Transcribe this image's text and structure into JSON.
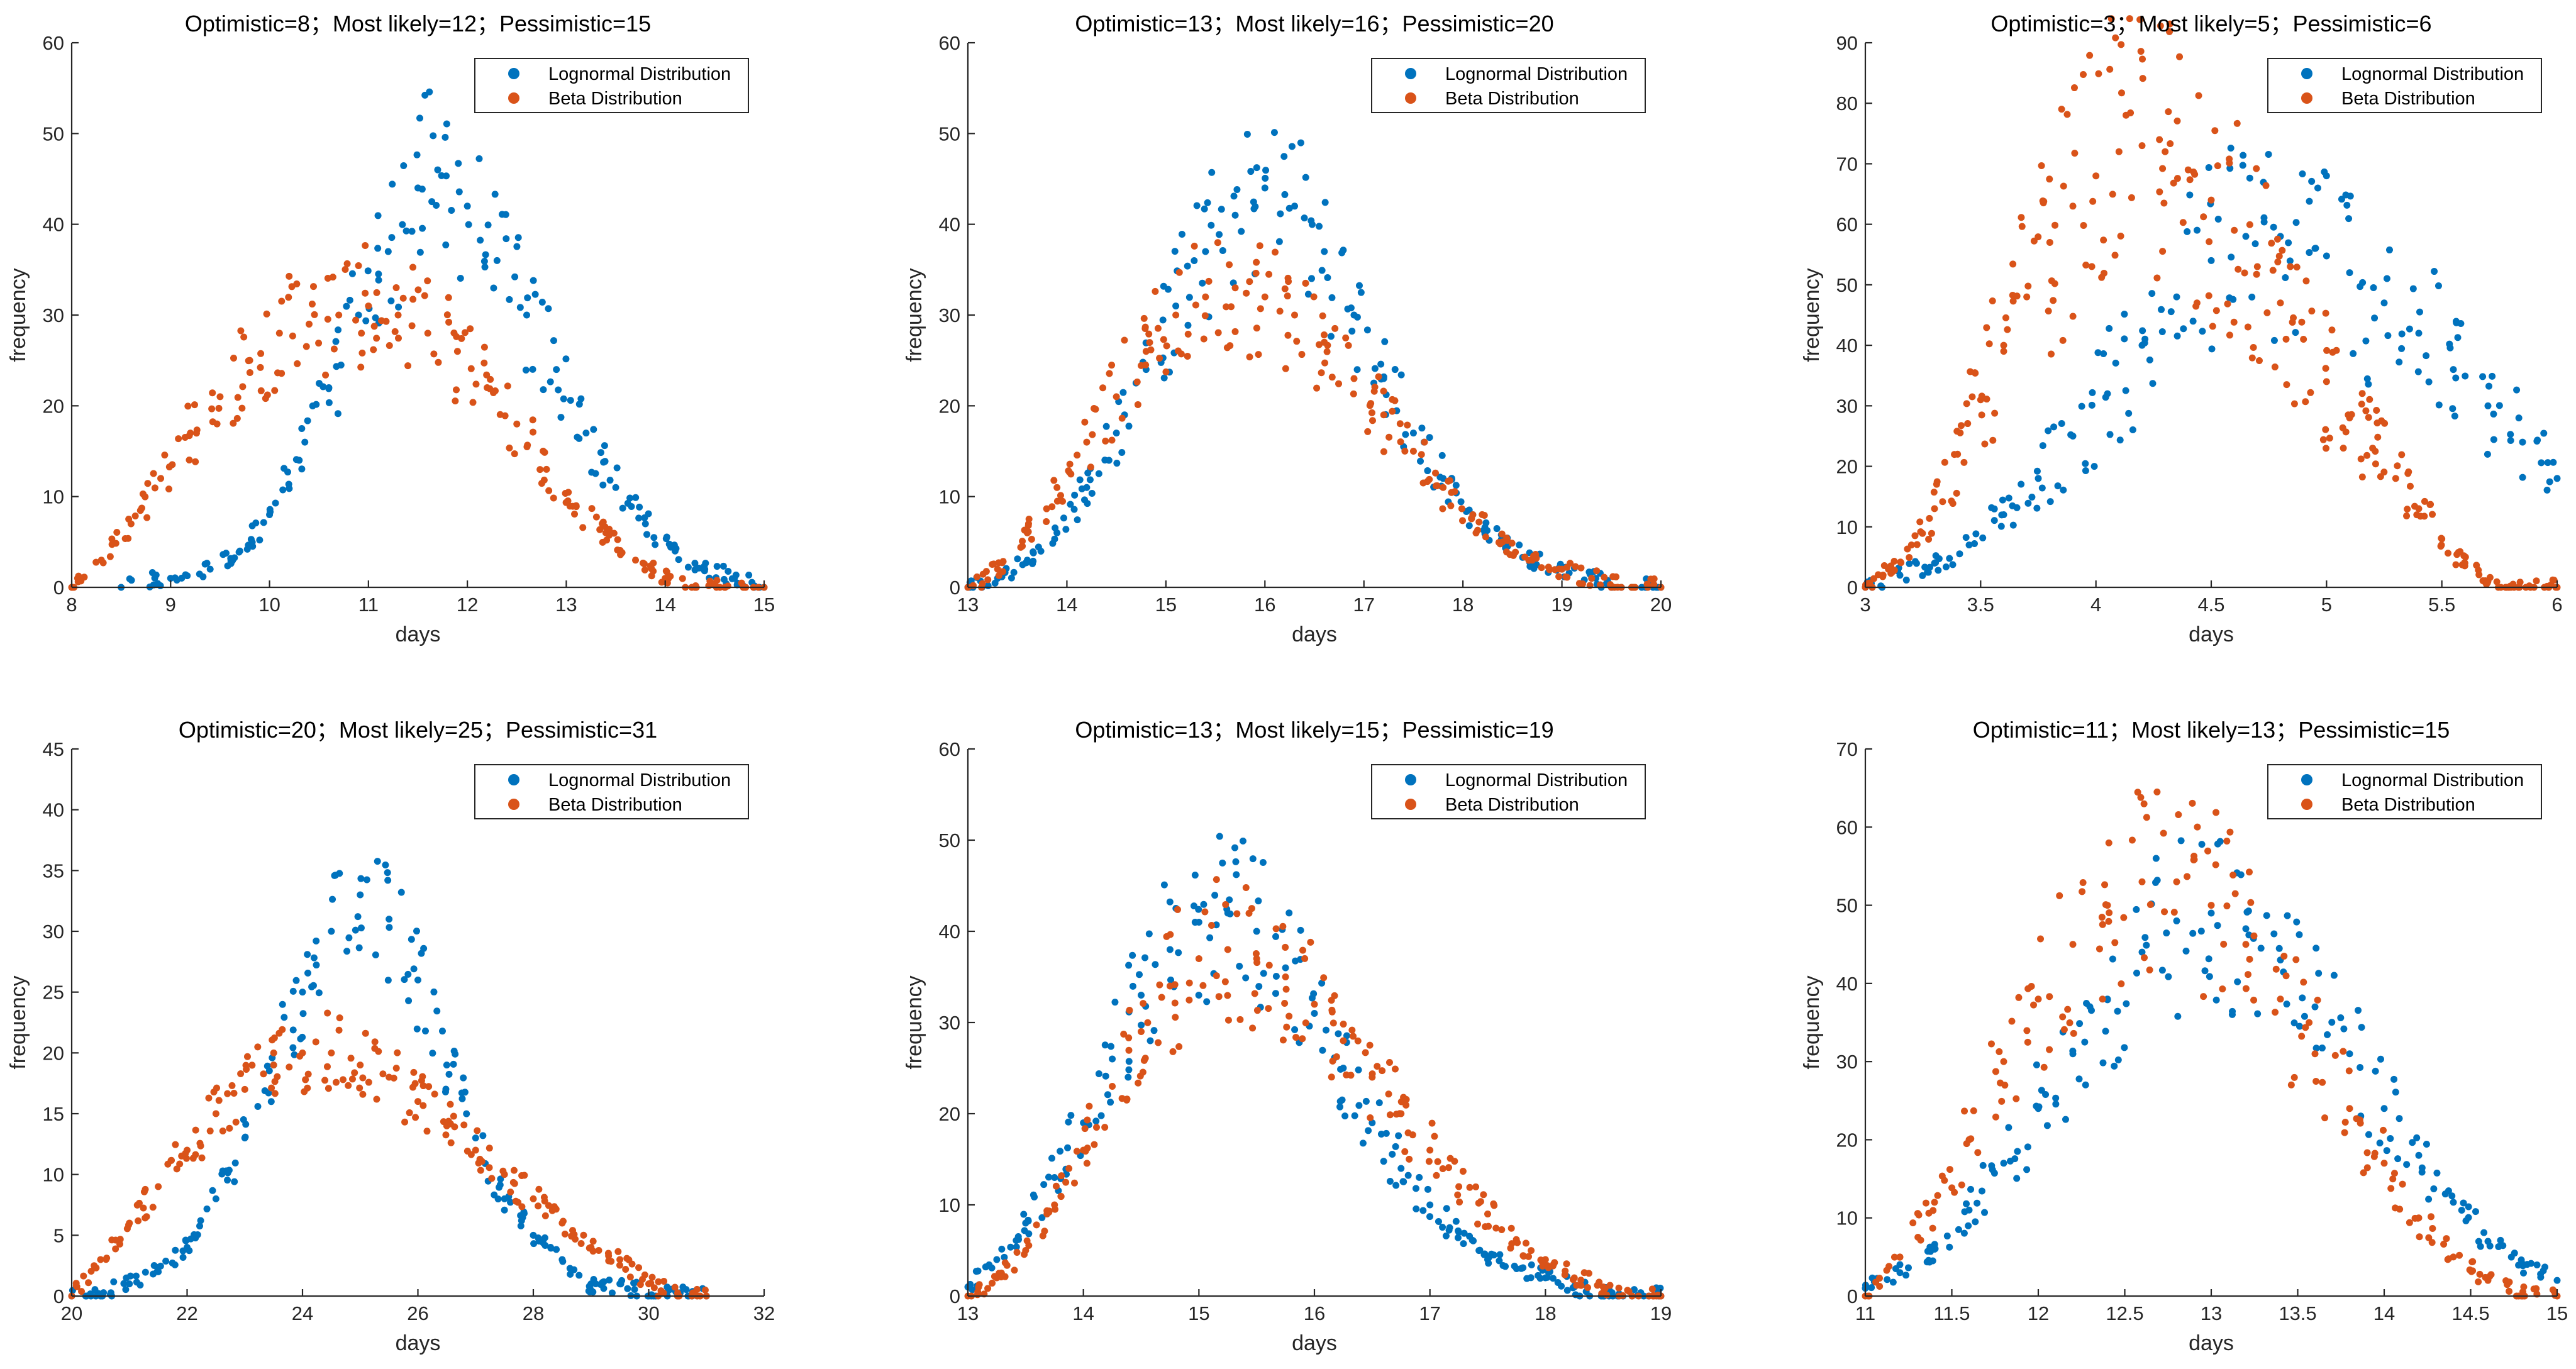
{
  "colors": {
    "lognormal": "#0072BD",
    "beta": "#D95319",
    "axis": "#262626"
  },
  "chart_data": [
    {
      "type": "scatter",
      "title": "Optimistic=8；Most likely=12；Pessimistic=15",
      "xlabel": "days",
      "ylabel": "frequency",
      "xlim": [
        8,
        15
      ],
      "ylim": [
        0,
        60
      ],
      "xticks": [
        "8",
        "9",
        "10",
        "11",
        "12",
        "13",
        "14",
        "15"
      ],
      "yticks": [
        "0",
        "10",
        "20",
        "30",
        "40",
        "50",
        "60"
      ],
      "legend": [
        "Lognormal Distribution",
        "Beta Distribution"
      ],
      "series": [
        {
          "name": "Lognormal Distribution",
          "x": [
            8.5,
            9.0,
            9.4,
            9.7,
            10.0,
            10.3,
            10.6,
            10.9,
            11.2,
            11.5,
            11.7,
            12.0,
            12.3,
            12.6,
            12.9,
            13.2,
            13.5,
            13.8,
            14.1,
            14.4,
            14.7,
            15.0
          ],
          "y": [
            0,
            1,
            2,
            4,
            8,
            14,
            22,
            30,
            37,
            44,
            46,
            42,
            36,
            30,
            24,
            17,
            11,
            7,
            4,
            2,
            1,
            0
          ]
        },
        {
          "name": "Beta Distribution",
          "x": [
            8.0,
            8.3,
            8.6,
            8.9,
            9.2,
            9.5,
            9.8,
            10.1,
            10.4,
            10.7,
            11.0,
            11.3,
            11.6,
            11.9,
            12.2,
            12.5,
            12.8,
            13.1,
            13.4,
            13.7,
            14.0,
            14.3,
            14.6,
            15.0
          ],
          "y": [
            0,
            3,
            7,
            12,
            17,
            21,
            25,
            28,
            29,
            30,
            31,
            30,
            28,
            26,
            22,
            18,
            13,
            9,
            6,
            3,
            1,
            0,
            0,
            0
          ]
        }
      ]
    },
    {
      "type": "scatter",
      "title": "Optimistic=13；Most likely=16；Pessimistic=20",
      "xlabel": "days",
      "ylabel": "frequency",
      "xlim": [
        13,
        20
      ],
      "ylim": [
        0,
        60
      ],
      "xticks": [
        "13",
        "14",
        "15",
        "16",
        "17",
        "18",
        "19",
        "20"
      ],
      "yticks": [
        "0",
        "10",
        "20",
        "30",
        "40",
        "50",
        "60"
      ],
      "legend": [
        "Lognormal Distribution",
        "Beta Distribution"
      ],
      "series": [
        {
          "name": "Lognormal Distribution",
          "x": [
            13.0,
            13.3,
            13.6,
            13.9,
            14.2,
            14.5,
            14.8,
            15.1,
            15.4,
            15.7,
            16.0,
            16.3,
            16.6,
            16.9,
            17.2,
            17.5,
            17.8,
            18.1,
            18.4,
            18.7,
            19.0,
            19.3,
            19.6,
            20.0
          ],
          "y": [
            0,
            1,
            3,
            6,
            11,
            17,
            24,
            31,
            37,
            41,
            44,
            42,
            37,
            30,
            23,
            17,
            12,
            8,
            5,
            3,
            2,
            1,
            0,
            0
          ]
        },
        {
          "name": "Beta Distribution",
          "x": [
            13.0,
            13.3,
            13.6,
            13.9,
            14.2,
            14.5,
            14.8,
            15.1,
            15.4,
            15.7,
            16.0,
            16.3,
            16.6,
            16.9,
            17.2,
            17.5,
            17.8,
            18.1,
            18.4,
            18.7,
            19.0,
            19.3,
            19.6,
            20.0
          ],
          "y": [
            0,
            2,
            6,
            11,
            16,
            21,
            26,
            30,
            32,
            33,
            32,
            30,
            27,
            23,
            19,
            15,
            11,
            8,
            5,
            3,
            2,
            1,
            0,
            0
          ]
        }
      ]
    },
    {
      "type": "scatter",
      "title": "Optimistic=3；Most likely=5；Pessimistic=6",
      "xlabel": "days",
      "ylabel": "frequency",
      "xlim": [
        3,
        6
      ],
      "ylim": [
        0,
        90
      ],
      "xticks": [
        "3",
        "3.5",
        "4",
        "4.5",
        "5",
        "5.5",
        "6"
      ],
      "yticks": [
        "0",
        "10",
        "20",
        "30",
        "40",
        "50",
        "60",
        "70",
        "80",
        "90"
      ],
      "legend": [
        "Lognormal Distribution",
        "Beta Distribution"
      ],
      "series": [
        {
          "name": "Lognormal Distribution",
          "x": [
            3.0,
            3.15,
            3.3,
            3.45,
            3.6,
            3.75,
            3.9,
            4.05,
            4.2,
            4.35,
            4.5,
            4.65,
            4.8,
            4.95,
            5.1,
            5.25,
            5.4,
            5.55,
            5.7,
            5.85,
            6.0
          ],
          "y": [
            0,
            2,
            4,
            7,
            12,
            18,
            25,
            32,
            40,
            48,
            54,
            58,
            58,
            56,
            52,
            47,
            42,
            36,
            30,
            24,
            18
          ]
        },
        {
          "name": "Beta Distribution",
          "x": [
            3.0,
            3.1,
            3.2,
            3.3,
            3.4,
            3.5,
            3.6,
            3.7,
            3.8,
            3.9,
            4.0,
            4.1,
            4.2,
            4.3,
            4.4,
            4.5,
            4.6,
            4.7,
            4.8,
            4.9,
            5.0,
            5.1,
            5.2,
            5.3,
            5.4,
            5.5,
            5.6,
            5.7,
            5.8,
            5.9,
            6.0
          ],
          "y": [
            0,
            3,
            7,
            13,
            22,
            31,
            40,
            48,
            57,
            63,
            68,
            72,
            73,
            72,
            69,
            64,
            59,
            53,
            47,
            41,
            34,
            28,
            23,
            18,
            13,
            8,
            4,
            1,
            0,
            0,
            0
          ]
        }
      ]
    },
    {
      "type": "scatter",
      "title": "Optimistic=20；Most likely=25；Pessimistic=31",
      "xlabel": "days",
      "ylabel": "frequency",
      "xlim": [
        20,
        32
      ],
      "ylim": [
        0,
        45
      ],
      "xticks": [
        "20",
        "22",
        "24",
        "26",
        "28",
        "30",
        "32"
      ],
      "yticks": [
        "0",
        "5",
        "10",
        "15",
        "20",
        "25",
        "30",
        "35",
        "40",
        "45"
      ],
      "legend": [
        "Lognormal Distribution",
        "Beta Distribution"
      ],
      "series": [
        {
          "name": "Lognormal Distribution",
          "x": [
            20.0,
            20.5,
            21.0,
            21.5,
            22.0,
            22.5,
            23.0,
            23.5,
            24.0,
            24.5,
            25.0,
            25.5,
            26.0,
            26.5,
            27.0,
            27.5,
            28.0,
            28.5,
            29.0,
            29.5,
            30.0,
            30.5,
            31.0
          ],
          "y": [
            0,
            0,
            1,
            2,
            4,
            8,
            13,
            19,
            25,
            30,
            33,
            31,
            26,
            19,
            13,
            8,
            5,
            3,
            1,
            1,
            0,
            0,
            0
          ]
        },
        {
          "name": "Beta Distribution",
          "x": [
            20.0,
            20.5,
            21.0,
            21.5,
            22.0,
            22.5,
            23.0,
            23.5,
            24.0,
            24.5,
            25.0,
            25.5,
            26.0,
            26.5,
            27.0,
            27.5,
            28.0,
            28.5,
            29.0,
            29.5,
            30.0,
            30.5,
            31.0
          ],
          "y": [
            0,
            3,
            6,
            9,
            12,
            15,
            17,
            19,
            20,
            20,
            19,
            18,
            16,
            14,
            12,
            10,
            8,
            6,
            4,
            3,
            1,
            0,
            0
          ]
        }
      ]
    },
    {
      "type": "scatter",
      "title": "Optimistic=13；Most likely=15；Pessimistic=19",
      "xlabel": "days",
      "ylabel": "frequency",
      "xlim": [
        13,
        19
      ],
      "ylim": [
        0,
        60
      ],
      "xticks": [
        "13",
        "14",
        "15",
        "16",
        "17",
        "18",
        "19"
      ],
      "yticks": [
        "0",
        "10",
        "20",
        "30",
        "40",
        "50",
        "60"
      ],
      "legend": [
        "Lognormal Distribution",
        "Beta Distribution"
      ],
      "series": [
        {
          "name": "Lognormal Distribution",
          "x": [
            13.0,
            13.25,
            13.5,
            13.75,
            14.0,
            14.25,
            14.5,
            14.75,
            15.0,
            15.25,
            15.5,
            15.75,
            16.0,
            16.25,
            16.5,
            16.75,
            17.0,
            17.25,
            17.5,
            17.75,
            18.0,
            18.25,
            18.5,
            18.75,
            19.0
          ],
          "y": [
            1,
            4,
            8,
            13,
            19,
            26,
            33,
            38,
            41,
            42,
            40,
            36,
            31,
            25,
            19,
            14,
            10,
            7,
            4,
            3,
            2,
            1,
            0,
            0,
            0
          ]
        },
        {
          "name": "Beta Distribution",
          "x": [
            13.0,
            13.25,
            13.5,
            13.75,
            14.0,
            14.25,
            14.5,
            14.75,
            15.0,
            15.25,
            15.5,
            15.75,
            16.0,
            16.25,
            16.5,
            16.75,
            17.0,
            17.25,
            17.5,
            17.75,
            18.0,
            18.25,
            18.5,
            18.75,
            19.0
          ],
          "y": [
            0,
            2,
            5,
            10,
            16,
            23,
            29,
            34,
            37,
            38,
            37,
            35,
            32,
            28,
            24,
            20,
            16,
            12,
            9,
            6,
            4,
            2,
            1,
            0,
            0
          ]
        }
      ]
    },
    {
      "type": "scatter",
      "title": "Optimistic=11；Most likely=13；Pessimistic=15",
      "xlabel": "days",
      "ylabel": "frequency",
      "xlim": [
        11,
        15
      ],
      "ylim": [
        0,
        70
      ],
      "xticks": [
        "11",
        "11.5",
        "12",
        "12.5",
        "13",
        "13.5",
        "14",
        "14.5",
        "15"
      ],
      "yticks": [
        "0",
        "10",
        "20",
        "30",
        "40",
        "50",
        "60",
        "70"
      ],
      "legend": [
        "Lognormal Distribution",
        "Beta Distribution"
      ],
      "series": [
        {
          "name": "Lognormal Distribution",
          "x": [
            11.0,
            11.2,
            11.4,
            11.6,
            11.8,
            12.0,
            12.2,
            12.4,
            12.6,
            12.8,
            13.0,
            13.2,
            13.4,
            13.6,
            13.8,
            14.0,
            14.2,
            14.4,
            14.6,
            14.8,
            15.0
          ],
          "y": [
            1,
            3,
            6,
            11,
            17,
            24,
            31,
            38,
            44,
            48,
            49,
            47,
            43,
            37,
            31,
            24,
            18,
            12,
            7,
            4,
            2
          ]
        },
        {
          "name": "Beta Distribution",
          "x": [
            11.0,
            11.2,
            11.4,
            11.6,
            11.8,
            12.0,
            12.2,
            12.4,
            12.6,
            12.8,
            13.0,
            13.2,
            13.4,
            13.6,
            13.8,
            14.0,
            14.2,
            14.4,
            14.6,
            14.8,
            15.0
          ],
          "y": [
            0,
            5,
            12,
            20,
            30,
            38,
            45,
            50,
            53,
            53,
            50,
            45,
            38,
            31,
            24,
            17,
            10,
            5,
            2,
            0,
            0
          ]
        }
      ]
    }
  ]
}
